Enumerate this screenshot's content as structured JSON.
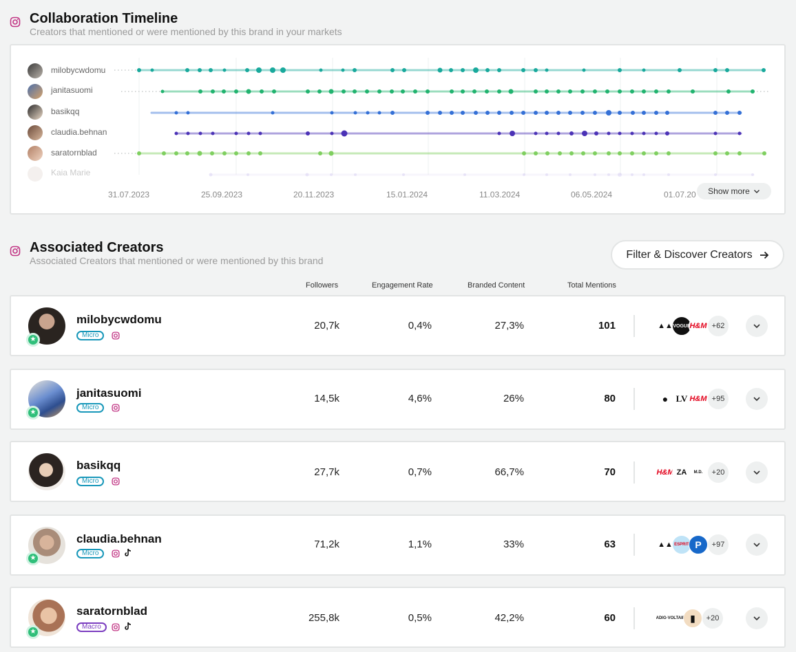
{
  "timeline": {
    "title": "Collaboration Timeline",
    "subtitle": "Creators that mentioned or were mentioned by this brand in your markets",
    "creators": [
      {
        "name": "milobycwdomu",
        "color": "#19a99c"
      },
      {
        "name": "janitasuomi",
        "color": "#21b36f"
      },
      {
        "name": "basikqq",
        "color": "#3470d6"
      },
      {
        "name": "claudia.behnan",
        "color": "#4b32b6"
      },
      {
        "name": "saratornblad",
        "color": "#7fcf5f"
      },
      {
        "name": "Kaia Marie",
        "color": "#c9c1ee"
      }
    ],
    "dates": [
      "31.07.2023",
      "25.09.2023",
      "20.11.2023",
      "15.01.2024",
      "11.03.2024",
      "06.05.2024",
      "01.07.20"
    ],
    "show_more_label": "Show more"
  },
  "associated": {
    "title": "Associated Creators",
    "subtitle": "Associated Creators that mentioned or were mentioned by this brand",
    "filter_button_label": "Filter & Discover Creators",
    "columns": {
      "followers": "Followers",
      "engagement": "Engagement Rate",
      "branded": "Branded Content",
      "mentions": "Total Mentions"
    },
    "rows": [
      {
        "name": "milobycwdomu",
        "tier": "Micro",
        "followers": "20,7k",
        "engagement": "0,4%",
        "branded": "27,3%",
        "mentions": "101",
        "more_brands": "+62",
        "platforms": [
          "instagram"
        ]
      },
      {
        "name": "janitasuomi",
        "tier": "Micro",
        "followers": "14,5k",
        "engagement": "4,6%",
        "branded": "26%",
        "mentions": "80",
        "more_brands": "+95",
        "platforms": [
          "instagram"
        ]
      },
      {
        "name": "basikqq",
        "tier": "Micro",
        "followers": "27,7k",
        "engagement": "0,7%",
        "branded": "66,7%",
        "mentions": "70",
        "more_brands": "+20",
        "platforms": [
          "instagram"
        ]
      },
      {
        "name": "claudia.behnan",
        "tier": "Micro",
        "followers": "71,2k",
        "engagement": "1,1%",
        "branded": "33%",
        "mentions": "63",
        "more_brands": "+97",
        "platforms": [
          "instagram",
          "tiktok"
        ]
      },
      {
        "name": "saratornblad",
        "tier": "Macro",
        "followers": "255,8k",
        "engagement": "0,5%",
        "branded": "42,2%",
        "mentions": "60",
        "more_brands": "+20",
        "platforms": [
          "instagram",
          "tiktok"
        ]
      }
    ]
  }
}
